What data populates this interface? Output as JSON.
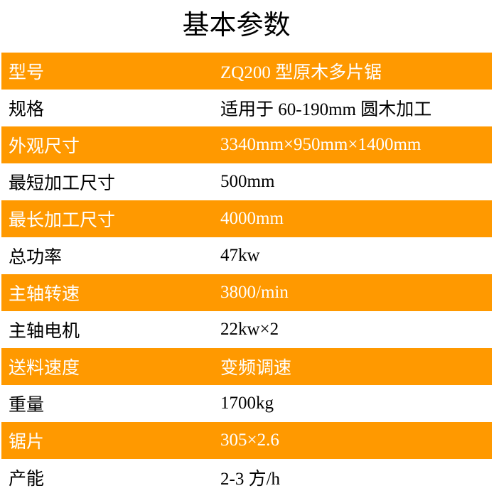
{
  "title": "基本参数",
  "accent_color": "#FF9900",
  "rows": [
    {
      "label": "型号",
      "value": "ZQ200 型原木多片锯",
      "highlight": true
    },
    {
      "label": "规格",
      "value": "适用于 60-190mm 圆木加工",
      "highlight": false
    },
    {
      "label": "外观尺寸",
      "value": "3340mm×950mm×1400mm",
      "highlight": true
    },
    {
      "label": "最短加工尺寸",
      "value": "500mm",
      "highlight": false
    },
    {
      "label": "最长加工尺寸",
      "value": "4000mm",
      "highlight": true
    },
    {
      "label": "总功率",
      "value": "47kw",
      "highlight": false
    },
    {
      "label": "主轴转速",
      "value": "3800/min",
      "highlight": true
    },
    {
      "label": "主轴电机",
      "value": "22kw×2",
      "highlight": false
    },
    {
      "label": "送料速度",
      "value": "变频调速",
      "highlight": true
    },
    {
      "label": "重量",
      "value": "1700kg",
      "highlight": false
    },
    {
      "label": "锯片",
      "value": "305×2.6",
      "highlight": true
    },
    {
      "label": "产能",
      "value": "2-3 方/h",
      "highlight": false
    }
  ]
}
